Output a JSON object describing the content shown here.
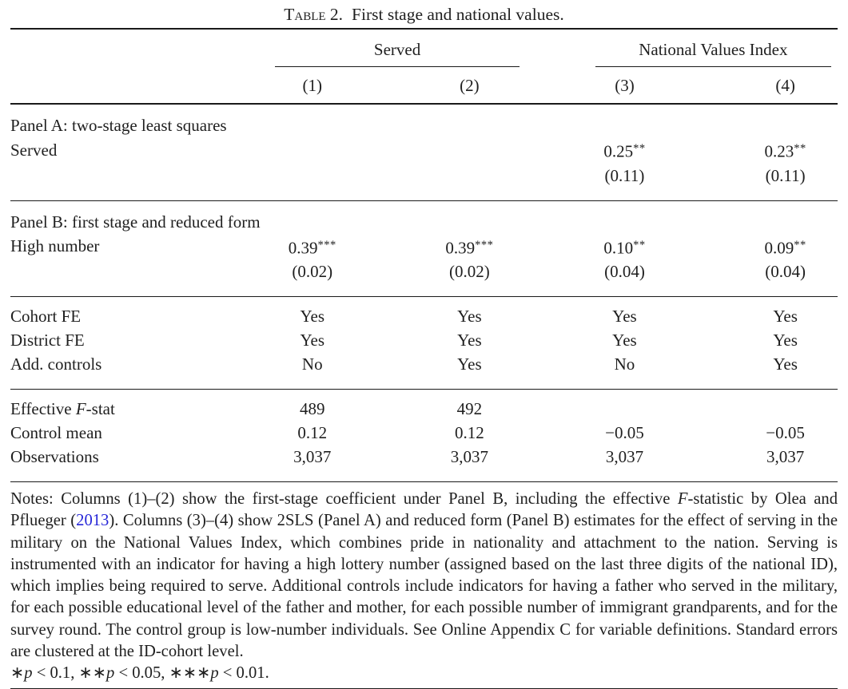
{
  "page": {
    "background": "#ffffff",
    "text_color": "#1f1f1f",
    "rule_color": "#1a1a1a",
    "link_color": "#2626d8"
  },
  "title": {
    "label": "Table 2.",
    "text": "First stage and national values."
  },
  "table": {
    "column_groups": [
      {
        "label": "Served",
        "columns": [
          "(1)",
          "(2)"
        ]
      },
      {
        "label": "National Values Index",
        "columns": [
          "(3)",
          "(4)"
        ]
      }
    ],
    "column_numbers": [
      "(1)",
      "(2)",
      "(3)",
      "(4)"
    ],
    "sections": [
      {
        "panel": "Panel A: two-stage least squares",
        "rows": [
          {
            "label": {
              "pre": "Served",
              "it": "",
              "post": ""
            },
            "cells": [
              {
                "v": "",
                "s": ""
              },
              {
                "v": "",
                "s": ""
              },
              {
                "v": "0.25",
                "s": "**"
              },
              {
                "v": "0.23",
                "s": "**"
              }
            ]
          },
          {
            "label": {
              "pre": "",
              "it": "",
              "post": ""
            },
            "cells": [
              {
                "v": "",
                "s": ""
              },
              {
                "v": "",
                "s": ""
              },
              {
                "v": "(0.11)",
                "s": ""
              },
              {
                "v": "(0.11)",
                "s": ""
              }
            ]
          }
        ]
      },
      {
        "panel": "Panel B: first stage and reduced form",
        "rows": [
          {
            "label": {
              "pre": "High number",
              "it": "",
              "post": ""
            },
            "cells": [
              {
                "v": "0.39",
                "s": "***"
              },
              {
                "v": "0.39",
                "s": "***"
              },
              {
                "v": "0.10",
                "s": "**"
              },
              {
                "v": "0.09",
                "s": "**"
              }
            ]
          },
          {
            "label": {
              "pre": "",
              "it": "",
              "post": ""
            },
            "cells": [
              {
                "v": "(0.02)",
                "s": ""
              },
              {
                "v": "(0.02)",
                "s": ""
              },
              {
                "v": "(0.04)",
                "s": ""
              },
              {
                "v": "(0.04)",
                "s": ""
              }
            ]
          }
        ]
      },
      {
        "panel": "",
        "rows": [
          {
            "label": {
              "pre": "Cohort FE",
              "it": "",
              "post": ""
            },
            "cells": [
              {
                "v": "Yes",
                "s": ""
              },
              {
                "v": "Yes",
                "s": ""
              },
              {
                "v": "Yes",
                "s": ""
              },
              {
                "v": "Yes",
                "s": ""
              }
            ]
          },
          {
            "label": {
              "pre": "District FE",
              "it": "",
              "post": ""
            },
            "cells": [
              {
                "v": "Yes",
                "s": ""
              },
              {
                "v": "Yes",
                "s": ""
              },
              {
                "v": "Yes",
                "s": ""
              },
              {
                "v": "Yes",
                "s": ""
              }
            ]
          },
          {
            "label": {
              "pre": "Add. controls",
              "it": "",
              "post": ""
            },
            "cells": [
              {
                "v": "No",
                "s": ""
              },
              {
                "v": "Yes",
                "s": ""
              },
              {
                "v": "No",
                "s": ""
              },
              {
                "v": "Yes",
                "s": ""
              }
            ]
          }
        ]
      },
      {
        "panel": "",
        "rows": [
          {
            "label": {
              "pre": "Effective ",
              "it": "F",
              "post": "-stat"
            },
            "cells": [
              {
                "v": "489",
                "s": ""
              },
              {
                "v": "492",
                "s": ""
              },
              {
                "v": "",
                "s": ""
              },
              {
                "v": "",
                "s": ""
              }
            ]
          },
          {
            "label": {
              "pre": "Control mean",
              "it": "",
              "post": ""
            },
            "cells": [
              {
                "v": "0.12",
                "s": ""
              },
              {
                "v": "0.12",
                "s": ""
              },
              {
                "v": "−0.05",
                "s": ""
              },
              {
                "v": "−0.05",
                "s": ""
              }
            ]
          },
          {
            "label": {
              "pre": "Observations",
              "it": "",
              "post": ""
            },
            "cells": [
              {
                "v": "3,037",
                "s": ""
              },
              {
                "v": "3,037",
                "s": ""
              },
              {
                "v": "3,037",
                "s": ""
              },
              {
                "v": "3,037",
                "s": ""
              }
            ]
          }
        ]
      }
    ]
  },
  "notes": {
    "main_segments": [
      {
        "t": "Notes: Columns (1)–(2) show the first-stage coefficient under Panel B, including the effective ",
        "style": "normal"
      },
      {
        "t": "F",
        "style": "italic"
      },
      {
        "t": "-statistic by Olea and Pflueger (",
        "style": "normal"
      },
      {
        "t": "2013",
        "style": "link"
      },
      {
        "t": "). Columns (3)–(4) show 2SLS (Panel A) and reduced form (Panel B) estimates for the effect of serving in the military on the National Values Index, which combines pride in nationality and attachment to the nation. Serving is instrumented with an indicator for having a high lottery number (assigned based on the last three digits of the national ID), which implies being required to serve. Additional controls include indicators for having a father who served in the military, for each possible educational level of the father and mother, for each possible number of immigrant grandparents, and for the survey round. The control group is low-number individuals. See Online Appendix C for variable definitions. Standard errors are clustered at the ID-cohort level.",
        "style": "normal"
      }
    ],
    "significance_segments": [
      {
        "t": "∗",
        "style": "normal"
      },
      {
        "t": "p",
        "style": "italic"
      },
      {
        "t": " < 0.1, ∗∗",
        "style": "normal"
      },
      {
        "t": "p",
        "style": "italic"
      },
      {
        "t": " < 0.05, ∗∗∗",
        "style": "normal"
      },
      {
        "t": "p",
        "style": "italic"
      },
      {
        "t": " < 0.01.",
        "style": "normal"
      }
    ]
  }
}
